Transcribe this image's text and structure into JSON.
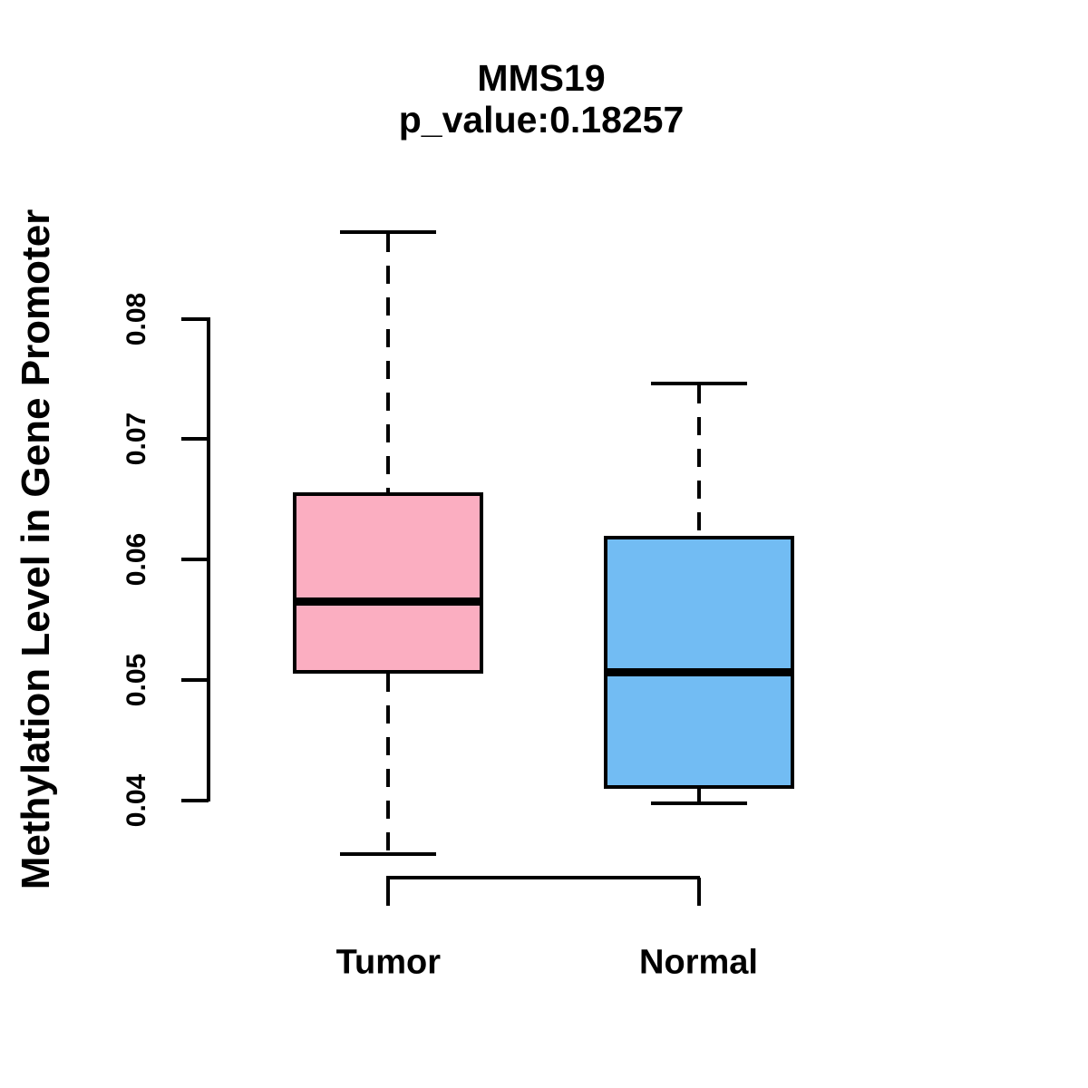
{
  "chart_data": {
    "type": "boxplot",
    "title": "MMS19",
    "subtitle": "p_value:0.18257",
    "gene": "MMS19",
    "p_value": "0.18257",
    "ylabel": "Methylation Level in Gene Promoter",
    "xlabel": "",
    "ylim": [
      0.04,
      0.08
    ],
    "grid": false,
    "legend": "none",
    "y_ticks": [
      {
        "label": "0.04",
        "value": 0.04
      },
      {
        "label": "0.05",
        "value": 0.05
      },
      {
        "label": "0.06",
        "value": 0.06
      },
      {
        "label": "0.07",
        "value": 0.07
      },
      {
        "label": "0.08",
        "value": 0.08
      }
    ],
    "categories": [
      "Tumor",
      "Normal"
    ],
    "series": [
      {
        "name": "Tumor",
        "box_fill_color": "#FBAEC1",
        "lower_whisker": 0.0355,
        "q1": 0.0507,
        "median": 0.0565,
        "q3": 0.0654,
        "upper_whisker": 0.0872
      },
      {
        "name": "Normal",
        "box_fill_color": "#72BCF3",
        "lower_whisker": 0.0397,
        "q1": 0.0411,
        "median": 0.0506,
        "q3": 0.0618,
        "upper_whisker": 0.0746
      }
    ],
    "stroke_color": "#000000",
    "background_color": "#FFFFFF"
  }
}
